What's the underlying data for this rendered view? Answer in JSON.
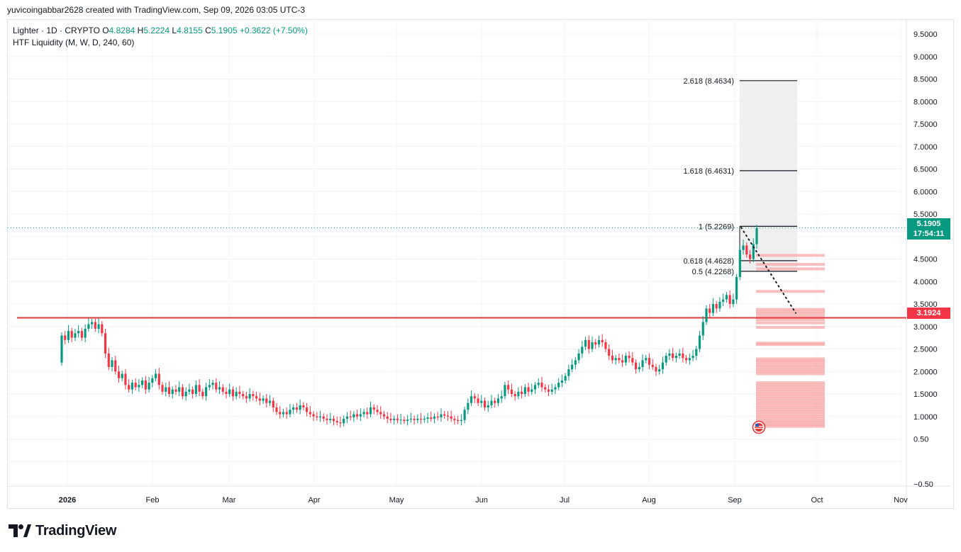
{
  "credit": "yuvicoingabbar2628 created with TradingView.com, Sep 09, 2026 03:05 UTC-3",
  "legend": {
    "symbol": "Lighter · 1D · CRYPTO",
    "o_label": "O",
    "o": "4.8284",
    "h_label": "H",
    "h": "5.2224",
    "l_label": "L",
    "l": "4.8155",
    "c_label": "C",
    "c": "5.1905",
    "change": "+0.3622 (+7.50%)",
    "indicator": "HTF Liquidity (M, W, D, 240, 60)"
  },
  "price_axis": {
    "ticks": [
      "9.5000",
      "9.0000",
      "8.5000",
      "8.0000",
      "7.5000",
      "7.0000",
      "6.5000",
      "6.0000",
      "5.5000",
      "4.5000",
      "4.0000",
      "3.5000",
      "3.0000",
      "2.5000",
      "2.0000",
      "1.5000",
      "1.0000",
      "0.50",
      "−0.50"
    ],
    "last_price": "5.1905",
    "countdown": "17:54:11",
    "level_price": "3.1924"
  },
  "time_axis": [
    "2026",
    "Feb",
    "Mar",
    "Apr",
    "May",
    "Jun",
    "Jul",
    "Aug",
    "Sep",
    "Oct",
    "Nov"
  ],
  "fib_labels": [
    "2.618 (8.4634)",
    "1.618 (6.4631)",
    "1 (5.2269)",
    "0.618 (4.4628)",
    "0.5 (4.2268)"
  ],
  "colors": {
    "up": "#089981",
    "down": "#f23645",
    "level": "#e03a3a",
    "liquidity": "#f7a8a8",
    "fib_fill": "#efefef"
  },
  "icons": {
    "flag": "us-flag-icon",
    "logo": "tradingview-logo-icon"
  },
  "brand": "TradingView",
  "chart_data": {
    "type": "candlestick",
    "symbol": "Lighter",
    "interval": "1D",
    "ylim": [
      -0.5,
      9.5
    ],
    "last_close": 5.1905,
    "horizontal_level": 3.1924,
    "fib_levels": [
      {
        "ratio": 2.618,
        "price": 8.4634
      },
      {
        "ratio": 1.618,
        "price": 6.4631
      },
      {
        "ratio": 1,
        "price": 5.2269
      },
      {
        "ratio": 0.618,
        "price": 4.4628
      },
      {
        "ratio": 0.5,
        "price": 4.2268
      }
    ],
    "projection": {
      "from": 5.2,
      "to": 3.3
    },
    "liquidity_levels": [
      4.58,
      4.38,
      4.28,
      3.78,
      3.38,
      3.33,
      3.28,
      3.22,
      3.15,
      3.08,
      2.98,
      2.63,
      2.6,
      2.28,
      2.24,
      2.2,
      2.15,
      2.1,
      2.05,
      2.0,
      1.95,
      1.75,
      1.7,
      1.65,
      1.6,
      1.55,
      1.5,
      1.45,
      1.4,
      1.35,
      1.3,
      1.25,
      1.2,
      1.15,
      1.1,
      1.05,
      1.0,
      0.95,
      0.9,
      0.86,
      0.82,
      0.78
    ],
    "closes": [
      2.8,
      2.7,
      2.9,
      2.75,
      2.85,
      2.9,
      2.75,
      2.95,
      3.05,
      3.1,
      2.95,
      3.05,
      2.85,
      2.4,
      2.1,
      2.25,
      2.0,
      1.85,
      1.95,
      1.7,
      1.6,
      1.75,
      1.65,
      1.7,
      1.8,
      1.6,
      1.75,
      1.85,
      1.95,
      1.7,
      1.55,
      1.65,
      1.5,
      1.6,
      1.55,
      1.65,
      1.45,
      1.55,
      1.6,
      1.5,
      1.7,
      1.55,
      1.45,
      1.65,
      1.7,
      1.75,
      1.6,
      1.65,
      1.55,
      1.5,
      1.6,
      1.45,
      1.55,
      1.5,
      1.45,
      1.4,
      1.5,
      1.45,
      1.4,
      1.35,
      1.4,
      1.3,
      1.35,
      1.2,
      1.1,
      1.05,
      1.1,
      1.05,
      1.15,
      1.2,
      1.15,
      1.25,
      1.2,
      1.1,
      1.05,
      1.0,
      0.98,
      1.0,
      0.95,
      0.92,
      0.95,
      0.9,
      0.87,
      0.85,
      0.95,
      1.0,
      0.98,
      1.05,
      1.0,
      1.05,
      1.1,
      1.05,
      1.2,
      1.15,
      1.1,
      1.05,
      1.0,
      0.95,
      0.92,
      0.95,
      0.92,
      0.93,
      0.9,
      0.93,
      0.95,
      0.92,
      0.95,
      0.93,
      0.95,
      0.98,
      0.95,
      1.0,
      0.98,
      1.05,
      1.02,
      1.0,
      0.95,
      0.92,
      0.9,
      0.92,
      1.15,
      1.3,
      1.45,
      1.4,
      1.3,
      1.35,
      1.2,
      1.25,
      1.35,
      1.3,
      1.4,
      1.45,
      1.7,
      1.6,
      1.5,
      1.45,
      1.55,
      1.5,
      1.65,
      1.55,
      1.6,
      1.7,
      1.75,
      1.65,
      1.6,
      1.55,
      1.6,
      1.65,
      1.75,
      1.8,
      1.9,
      2.05,
      2.15,
      2.25,
      2.4,
      2.55,
      2.7,
      2.5,
      2.65,
      2.6,
      2.7,
      2.65,
      2.5,
      2.35,
      2.25,
      2.3,
      2.25,
      2.2,
      2.35,
      2.3,
      2.2,
      2.05,
      2.1,
      2.25,
      2.3,
      2.15,
      2.1,
      2.0,
      2.05,
      2.2,
      2.35,
      2.4,
      2.3,
      2.35,
      2.4,
      2.3,
      2.25,
      2.3,
      2.35,
      2.5,
      2.8,
      3.1,
      3.4,
      3.3,
      3.5,
      3.4,
      3.55,
      3.6,
      3.7,
      3.5,
      3.6,
      4.1,
      4.7,
      4.8,
      4.6,
      4.5,
      4.83,
      5.19
    ]
  }
}
